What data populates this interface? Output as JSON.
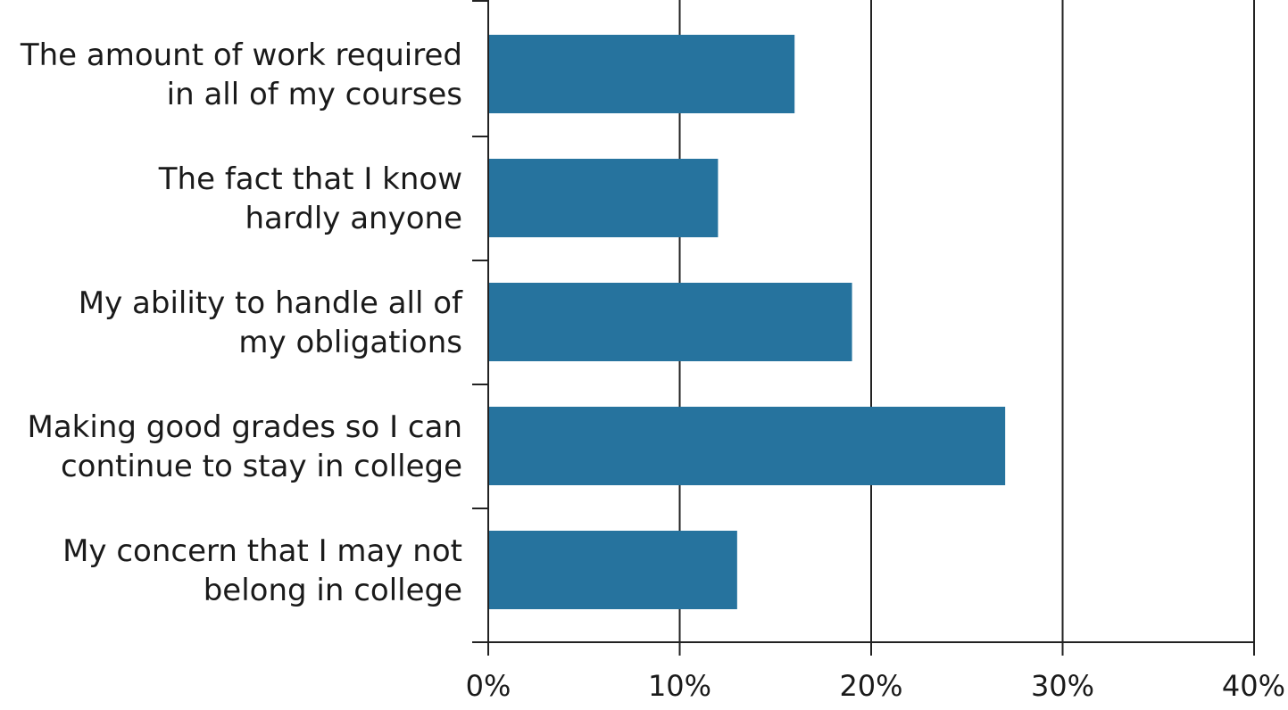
{
  "chart_data": {
    "type": "bar",
    "orientation": "horizontal",
    "categories": [
      [
        "The amount of work required",
        "in all of my courses"
      ],
      [
        "The fact that I know",
        "hardly anyone"
      ],
      [
        "My ability to handle all of",
        "my obligations"
      ],
      [
        "Making good grades so I can",
        "continue to stay in college"
      ],
      [
        "My concern that I may not",
        "belong in college"
      ]
    ],
    "values": [
      16,
      12,
      19,
      27,
      13
    ],
    "value_unit": "%",
    "xlim": [
      0,
      40
    ],
    "xticks": [
      0,
      10,
      20,
      30,
      40
    ],
    "xtick_labels": [
      "0%",
      "10%",
      "20%",
      "30%",
      "40%"
    ],
    "title": "",
    "xlabel": "",
    "ylabel": "",
    "grid": "vertical",
    "legend": "none",
    "bar_color": "#26739e"
  }
}
